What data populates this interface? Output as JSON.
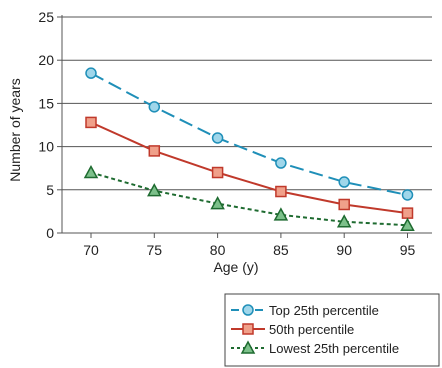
{
  "chart_data": {
    "type": "line",
    "xlabel": "Age (y)",
    "ylabel": "Number of years",
    "x": [
      70,
      75,
      80,
      85,
      90,
      95
    ],
    "ylim": [
      0,
      25
    ],
    "yticks": [
      0,
      5,
      10,
      15,
      20,
      25
    ],
    "grid": true,
    "legend_placement": "bottom-right",
    "series": [
      {
        "name": "Top 25th percentile",
        "values": [
          18.5,
          14.6,
          11.0,
          8.1,
          5.9,
          4.4
        ],
        "color": "#1f8fb8",
        "line_style": "long-dash",
        "marker": "circle"
      },
      {
        "name": "50th percentile",
        "values": [
          12.8,
          9.5,
          7.0,
          4.8,
          3.3,
          2.3
        ],
        "color": "#c0392b",
        "line_style": "solid",
        "marker": "square"
      },
      {
        "name": "Lowest 25th percentile",
        "values": [
          7.0,
          4.9,
          3.4,
          2.1,
          1.3,
          0.9
        ],
        "color": "#1e6b30",
        "line_style": "dotted",
        "marker": "triangle"
      }
    ]
  }
}
